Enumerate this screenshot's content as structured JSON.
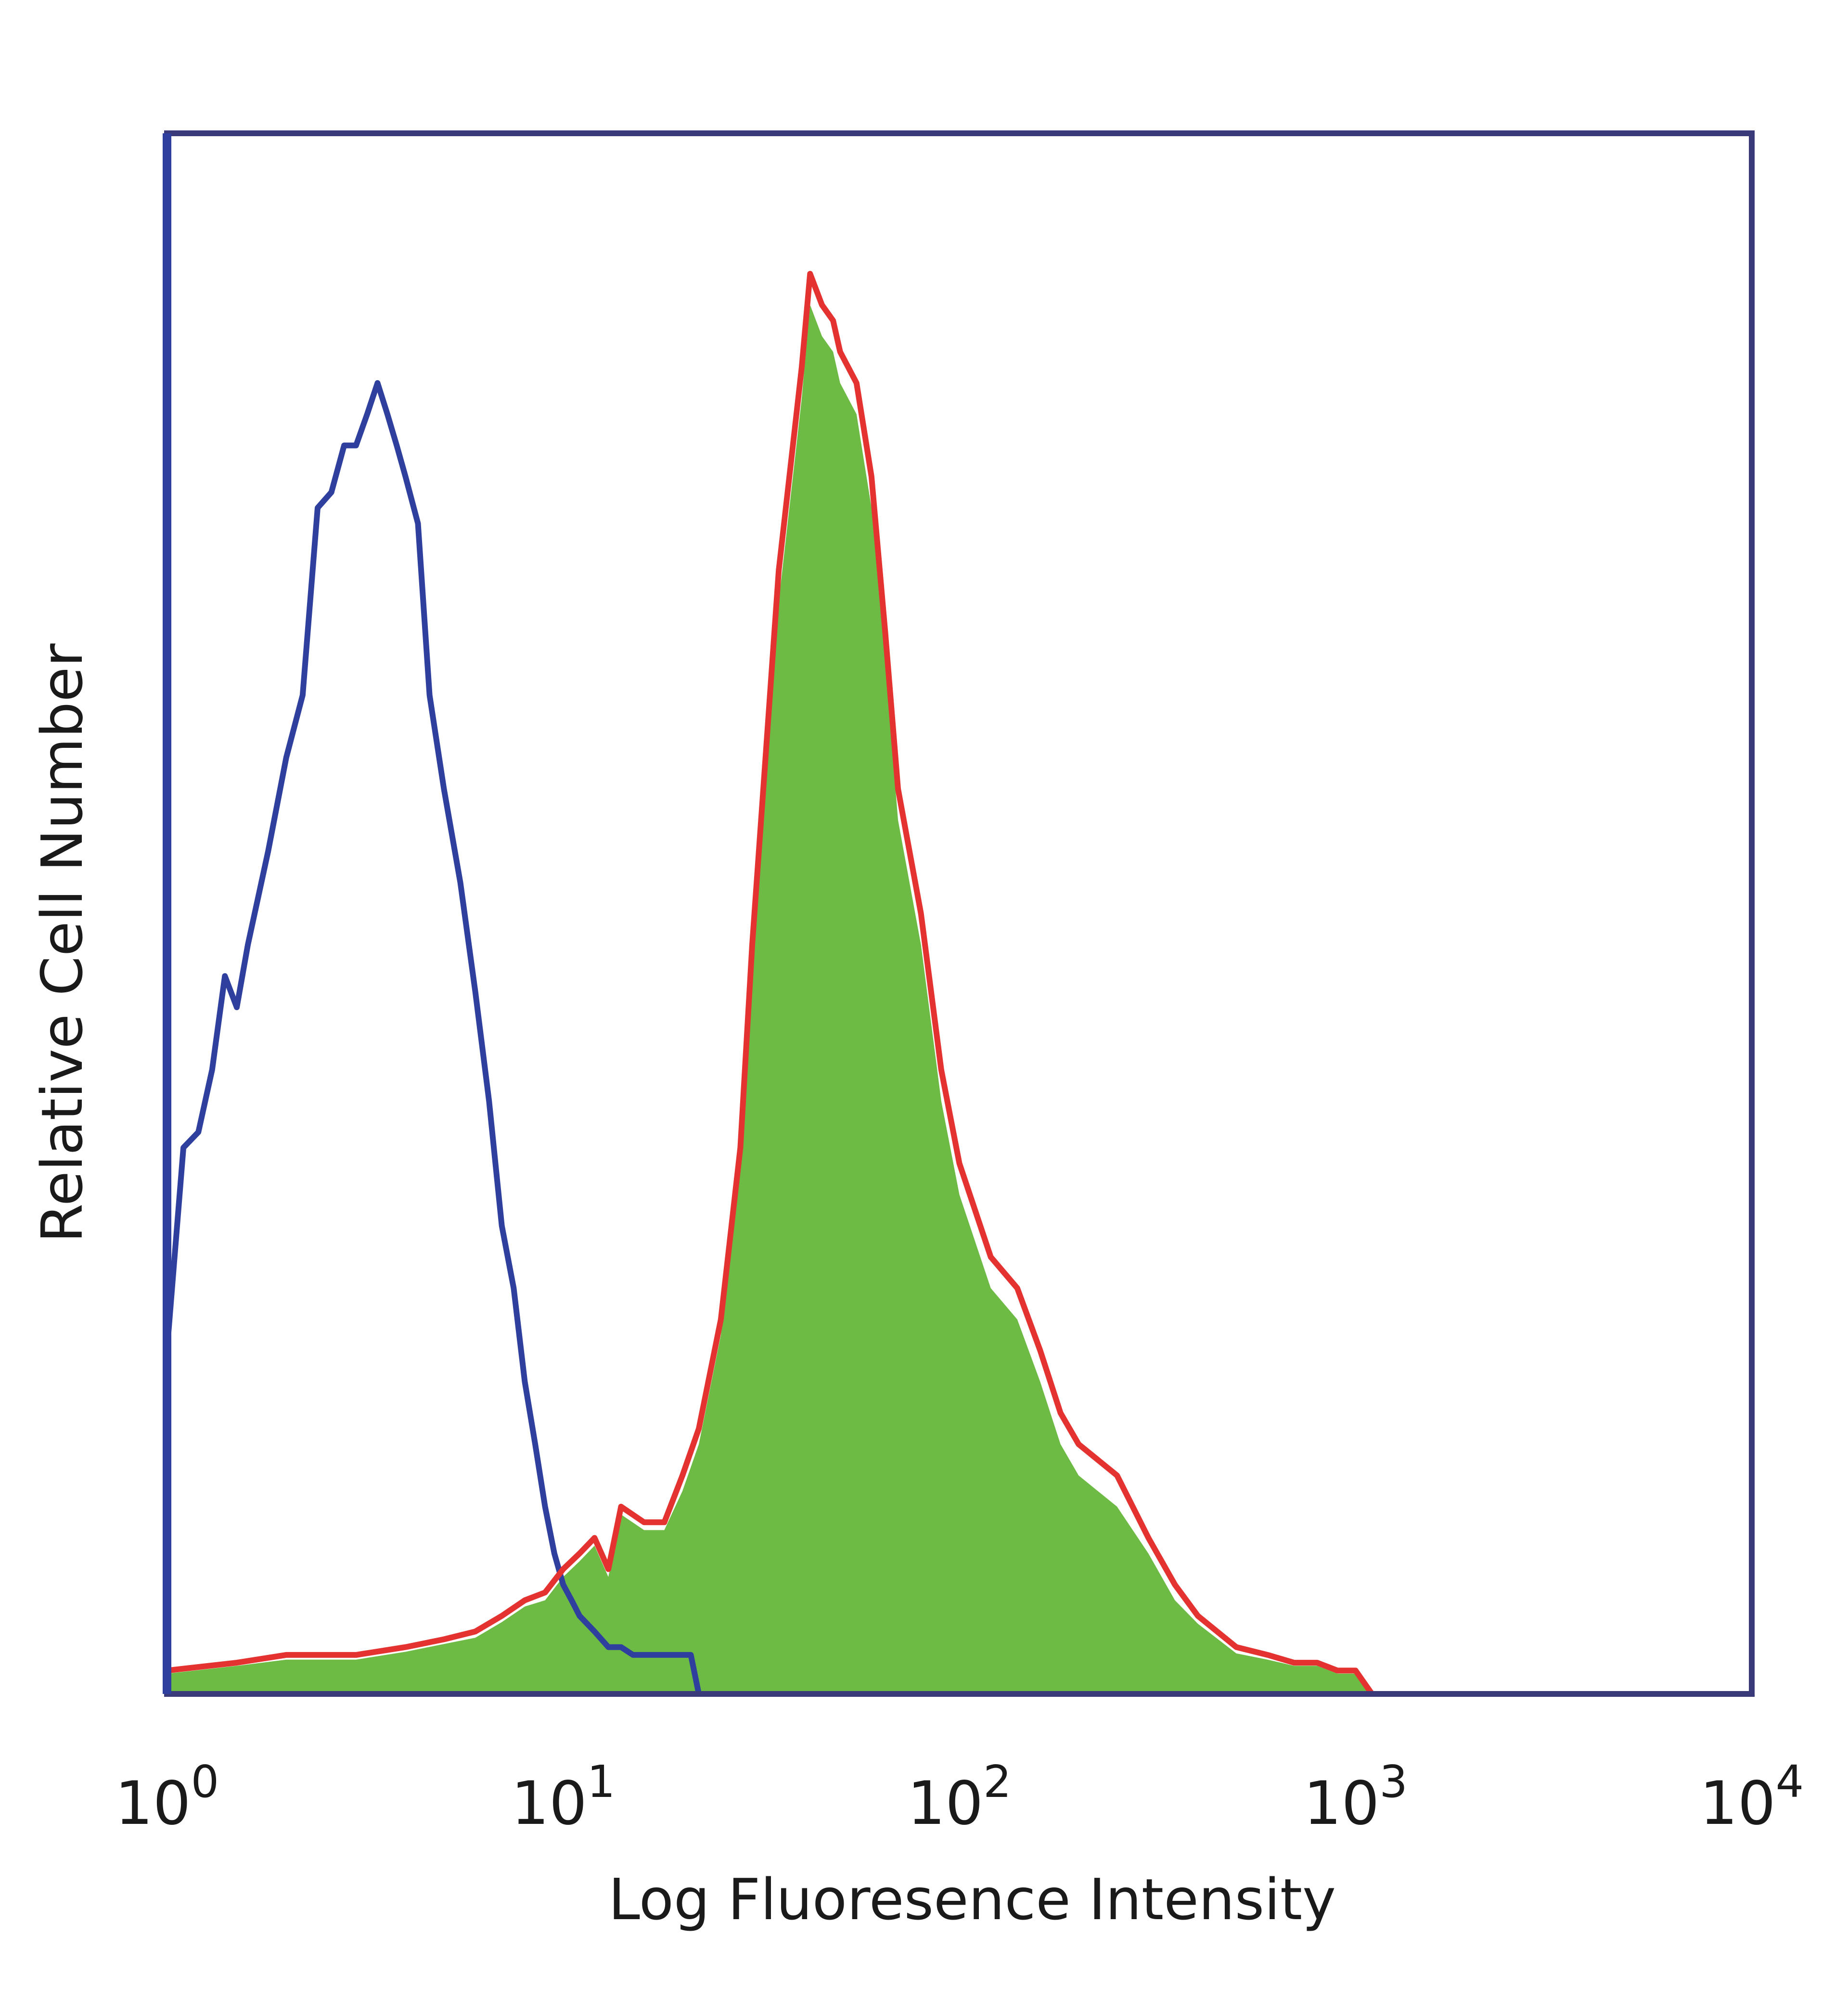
{
  "chart_data": {
    "type": "area",
    "xlabel": "Log Fluoresence Intensity",
    "ylabel": "Relative Cell Number",
    "xscale": "log",
    "xlim": [
      1,
      10000
    ],
    "ylim": [
      0,
      100
    ],
    "grid": false,
    "x_ticks": [
      {
        "base": "10",
        "exp": "0"
      },
      {
        "base": "10",
        "exp": "1"
      },
      {
        "base": "10",
        "exp": "2"
      },
      {
        "base": "10",
        "exp": "3"
      },
      {
        "base": "10",
        "exp": "4"
      }
    ],
    "series": [
      {
        "style": "outline",
        "color": "#2e3f9e",
        "x": [
          1.0,
          1.1,
          1.2,
          1.3,
          1.4,
          1.5,
          1.6,
          1.8,
          2.0,
          2.2,
          2.4,
          2.6,
          2.8,
          3.0,
          3.2,
          3.4,
          3.6,
          3.8,
          4.0,
          4.3,
          4.6,
          5.0,
          5.5,
          6.0,
          6.5,
          7.0,
          7.5,
          8.0,
          8.5,
          9.0,
          9.5,
          10.0,
          10.5,
          11.0,
          12.0,
          13.0,
          14.0,
          15.0,
          17.0,
          19.0,
          21.0,
          22.0
        ],
        "y": [
          22,
          35,
          36,
          40,
          46,
          44,
          48,
          54,
          60,
          64,
          76,
          77,
          80,
          80,
          82,
          84,
          82,
          80,
          78,
          75,
          64,
          58,
          52,
          45,
          38,
          30,
          26,
          20,
          16,
          12,
          9,
          7,
          6,
          5,
          4,
          3,
          3,
          2.5,
          2.5,
          2.5,
          2.5,
          0
        ]
      },
      {
        "style": "outline",
        "color": "#e3322f",
        "x": [
          1.0,
          1.5,
          2.0,
          3.0,
          4.0,
          5.0,
          6.0,
          7.0,
          8.0,
          9.0,
          10.0,
          11.0,
          12.0,
          13.0,
          14.0,
          16.0,
          18.0,
          20.0,
          22.0,
          25.0,
          28.0,
          30.0,
          32.0,
          35.0,
          38.0,
          40.0,
          42.0,
          45.0,
          48.0,
          50.0,
          55.0,
          60.0,
          65.0,
          70.0,
          80.0,
          90.0,
          100.0,
          120.0,
          140.0,
          160.0,
          180.0,
          200.0,
          250.0,
          300.0,
          350.0,
          400.0,
          500.0,
          600.0,
          700.0,
          800.0,
          900.0,
          1000.0,
          1100.0
        ],
        "y": [
          1.5,
          2,
          2.5,
          2.5,
          3,
          3.5,
          4,
          5,
          6,
          6.5,
          8,
          9,
          10,
          8,
          12,
          11,
          11,
          14,
          17,
          24,
          35,
          48,
          58,
          72,
          80,
          85,
          91,
          89,
          88,
          86,
          84,
          78,
          68,
          58,
          50,
          40,
          34,
          28,
          26,
          22,
          18,
          16,
          14,
          10,
          7,
          5,
          3,
          2.5,
          2,
          2,
          1.5,
          1.5,
          0
        ]
      },
      {
        "style": "filled",
        "color": "#6dbb45",
        "x": [
          1.0,
          1.5,
          2.0,
          3.0,
          4.0,
          5.0,
          6.0,
          7.0,
          8.0,
          9.0,
          10.0,
          11.0,
          12.0,
          13.0,
          14.0,
          16.0,
          18.0,
          20.0,
          22.0,
          25.0,
          28.0,
          30.0,
          32.0,
          35.0,
          38.0,
          40.0,
          42.0,
          45.0,
          48.0,
          50.0,
          55.0,
          60.0,
          65.0,
          70.0,
          80.0,
          90.0,
          100.0,
          120.0,
          140.0,
          160.0,
          180.0,
          200.0,
          250.0,
          300.0,
          350.0,
          400.0,
          500.0,
          600.0,
          700.0,
          800.0,
          900.0,
          1000.0,
          1100.0
        ],
        "y": [
          1.3,
          1.8,
          2.2,
          2.2,
          2.7,
          3.2,
          3.6,
          4.6,
          5.6,
          6,
          7.5,
          8.5,
          9.5,
          7.5,
          11.5,
          10.5,
          10.5,
          13,
          16,
          23,
          34,
          47,
          57,
          70,
          78,
          83,
          89,
          87,
          86,
          84,
          82,
          76,
          66,
          56,
          48,
          38,
          32,
          26,
          24,
          20,
          16,
          14,
          12,
          9,
          6,
          4.5,
          2.6,
          2.2,
          1.8,
          1.8,
          1.3,
          1.3,
          0
        ]
      }
    ]
  },
  "colors": {
    "frame": "#3a3a7a",
    "left_axis": "#2e3f9e"
  }
}
